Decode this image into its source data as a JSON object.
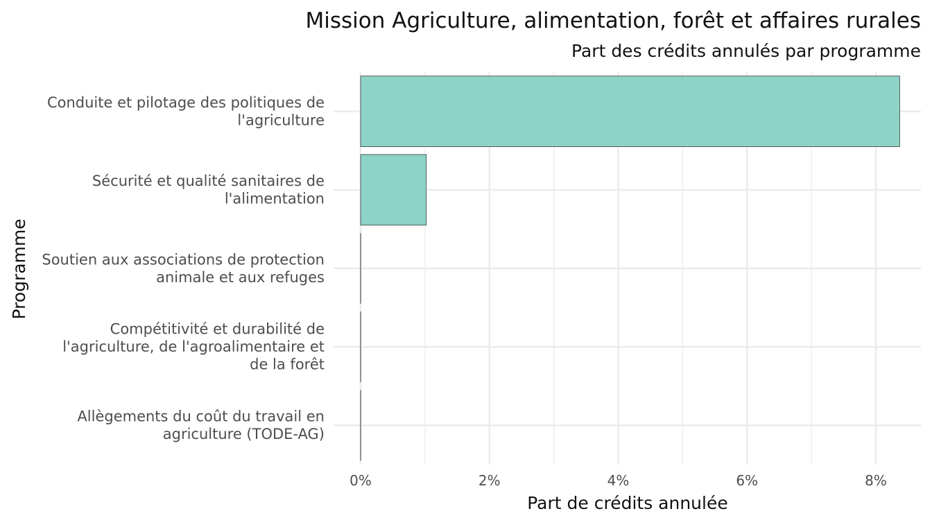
{
  "chart_data": {
    "type": "bar",
    "orientation": "horizontal",
    "title": "Mission Agriculture, alimentation, forêt et affaires rurales",
    "subtitle": "Part des crédits annulés par programme",
    "xlabel": "Part de crédits annulée",
    "ylabel": "Programme",
    "categories": [
      [
        "Conduite et pilotage des politiques de",
        "l'agriculture"
      ],
      [
        "Sécurité et qualité sanitaires de",
        "l'alimentation"
      ],
      [
        "Soutien aux associations de protection",
        "animale et aux refuges"
      ],
      [
        "Compétitivité et durabilité de",
        "l'agriculture, de l'agroalimentaire et",
        "de la forêt"
      ],
      [
        "Allègements du coût du travail en",
        "agriculture (TODE-AG)"
      ]
    ],
    "values": [
      8.37,
      1.02,
      0,
      0,
      0
    ],
    "value_unit": "%",
    "xlim": [
      -0.42,
      8.7
    ],
    "x_ticks": [
      {
        "value": 0,
        "label": "0%"
      },
      {
        "value": 2,
        "label": "2%"
      },
      {
        "value": 4,
        "label": "4%"
      },
      {
        "value": 6,
        "label": "6%"
      },
      {
        "value": 8,
        "label": "8%"
      }
    ],
    "x_minor_ticks": [
      1,
      3,
      5,
      7
    ],
    "grid": true,
    "bar_fill": "#8dd3c7",
    "bar_stroke": "#3a3a3a",
    "grid_color": "#ebebeb"
  }
}
